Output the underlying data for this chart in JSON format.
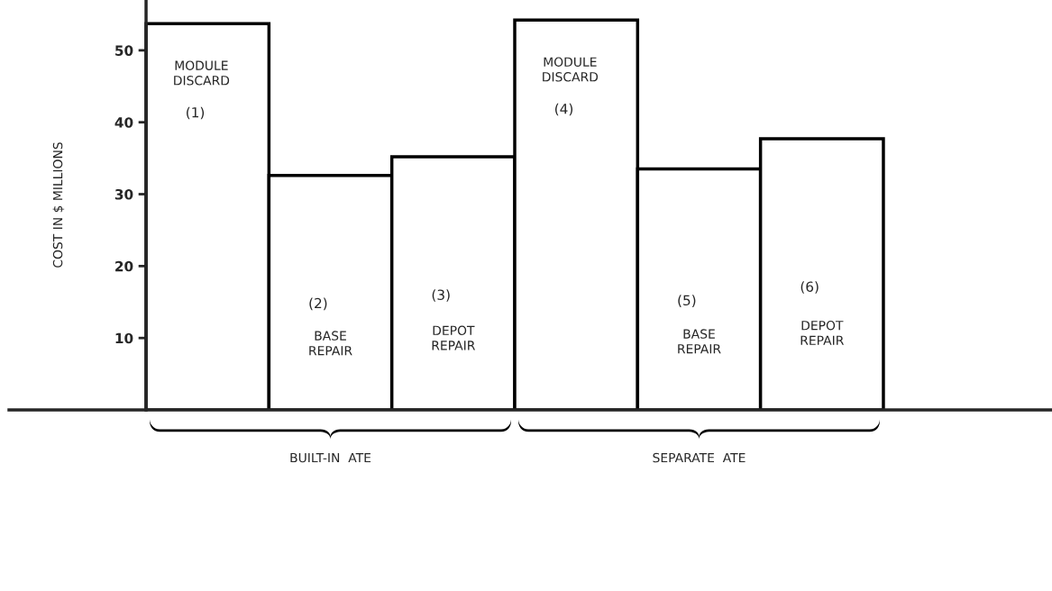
{
  "chart_data": {
    "type": "bar",
    "categories": [
      "MODULE DISCARD",
      "BASE REPAIR",
      "DEPOT REPAIR",
      "MODULE DISCARD",
      "BASE REPAIR",
      "DEPOT REPAIR"
    ],
    "values": [
      53.7,
      32.6,
      35.2,
      54.2,
      33.5,
      37.7
    ],
    "color": "#ffffff",
    "ylabel": "COST IN $ MILLIONS",
    "ylim": [
      0,
      57
    ],
    "yticks": [
      10,
      20,
      30,
      40,
      50
    ],
    "annotations": [
      "(1)",
      "(2)",
      "(3)",
      "(4)",
      "(5)",
      "(6)",
      "BUILT-IN  ATE",
      "SEPARATE  ATE"
    ],
    "grid": false
  }
}
